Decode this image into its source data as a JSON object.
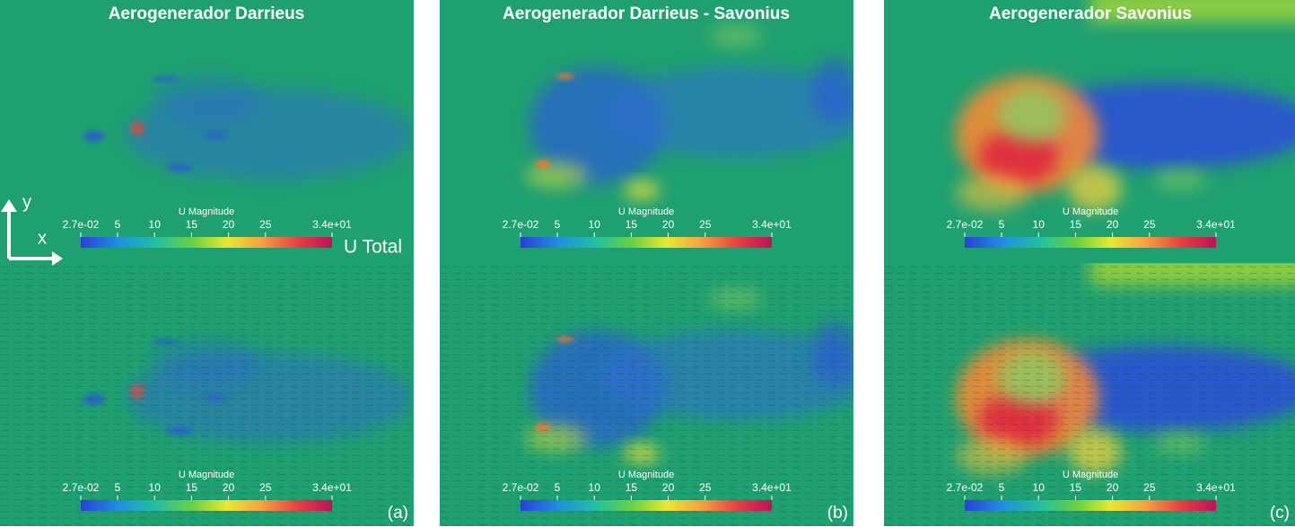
{
  "panels": [
    {
      "title": "Aerogenerador Darrieus",
      "label": "(a)"
    },
    {
      "title": "Aerogenerador Darrieus - Savonius",
      "label": "(b)"
    },
    {
      "title": "Aerogenerador Savonius",
      "label": "(c)"
    }
  ],
  "colorbar": {
    "title": "U Magnitude",
    "ticks": [
      {
        "value": 0.027,
        "label": "2.7e-02"
      },
      5,
      10,
      15,
      20,
      25,
      {
        "value": 34,
        "label": "3.4e+01"
      }
    ]
  },
  "axes": {
    "y": "y",
    "x": "x"
  },
  "field_label": "U Total"
}
